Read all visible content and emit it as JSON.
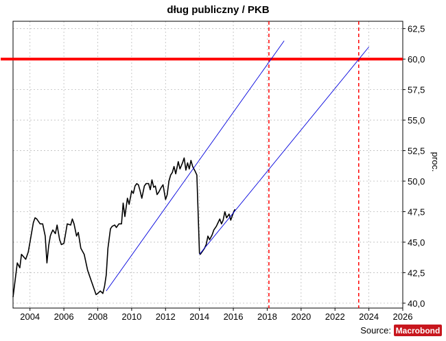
{
  "chart_data": {
    "type": "line",
    "title": "dług publiczny / PKB",
    "ylabel": "proc.",
    "xlim": [
      2003.0,
      2026.0
    ],
    "ylim": [
      39.6,
      63.1
    ],
    "x_ticks": [
      2004,
      2006,
      2008,
      2010,
      2012,
      2014,
      2016,
      2018,
      2020,
      2022,
      2024,
      2026
    ],
    "y_ticks": [
      "40,0",
      "42,5",
      "45,0",
      "47,5",
      "50,0",
      "52,5",
      "55,0",
      "57,5",
      "60,0",
      "62,5"
    ],
    "y_tick_values": [
      40.0,
      42.5,
      45.0,
      47.5,
      50.0,
      52.5,
      55.0,
      57.5,
      60.0,
      62.5
    ],
    "grid": true,
    "series": [
      {
        "color": "#000000",
        "style": "solid",
        "x": [
          2003.0,
          2003.25,
          2003.4,
          2003.5,
          2003.75,
          2003.9,
          2004.0,
          2004.2,
          2004.3,
          2004.4,
          2004.6,
          2004.75,
          2004.9,
          2005.0,
          2005.1,
          2005.2,
          2005.25,
          2005.35,
          2005.5,
          2005.6,
          2005.75,
          2005.85,
          2006.0,
          2006.1,
          2006.2,
          2006.4,
          2006.5,
          2006.6,
          2006.75,
          2006.85,
          2007.0,
          2007.2,
          2007.4,
          2007.6,
          2007.75,
          2007.9,
          2008.0,
          2008.15,
          2008.3,
          2008.4,
          2008.5,
          2008.6,
          2008.75,
          2008.85,
          2009.0,
          2009.1,
          2009.25,
          2009.4,
          2009.5,
          2009.6,
          2009.75,
          2009.85,
          2010.0,
          2010.1,
          2010.2,
          2010.3,
          2010.4,
          2010.5,
          2010.6,
          2010.75,
          2010.85,
          2011.0,
          2011.1,
          2011.2,
          2011.3,
          2011.4,
          2011.5,
          2011.6,
          2011.75,
          2011.85,
          2012.0,
          2012.1,
          2012.2,
          2012.3,
          2012.4,
          2012.5,
          2012.6,
          2012.75,
          2012.85,
          2013.0,
          2013.1,
          2013.2,
          2013.3,
          2013.4,
          2013.5,
          2013.6,
          2013.75,
          2013.85,
          2014.0,
          2014.05,
          2014.1,
          2014.2,
          2014.3,
          2014.4,
          2014.5,
          2014.6,
          2014.75,
          2014.85,
          2015.0,
          2015.1,
          2015.2,
          2015.3,
          2015.4,
          2015.5,
          2015.6,
          2015.75,
          2015.85,
          2016.0,
          2016.1
        ],
        "values": [
          40.5,
          43.3,
          42.9,
          44.0,
          43.6,
          44.2,
          45.0,
          46.6,
          47.0,
          46.9,
          46.5,
          46.5,
          45.5,
          43.3,
          44.7,
          45.5,
          45.7,
          46.0,
          45.7,
          46.4,
          45.2,
          44.8,
          44.9,
          45.7,
          46.5,
          46.4,
          46.9,
          46.5,
          45.5,
          45.8,
          44.5,
          44.0,
          42.7,
          41.9,
          41.3,
          40.7,
          40.8,
          41.0,
          40.8,
          41.4,
          42.3,
          44.5,
          46.1,
          46.3,
          46.4,
          46.2,
          46.5,
          46.5,
          48.2,
          47.1,
          48.6,
          48.1,
          49.2,
          49.0,
          49.6,
          49.8,
          49.7,
          49.2,
          48.6,
          49.6,
          49.8,
          49.8,
          49.3,
          50.1,
          49.5,
          49.6,
          48.9,
          49.1,
          49.5,
          49.7,
          48.5,
          48.9,
          50.0,
          50.5,
          50.7,
          51.2,
          50.6,
          51.6,
          51.0,
          51.5,
          51.9,
          50.9,
          51.5,
          51.0,
          51.7,
          51.2,
          50.8,
          50.5,
          44.1,
          44.0,
          44.1,
          44.3,
          44.5,
          44.8,
          45.5,
          45.2,
          45.6,
          46.0,
          46.3,
          46.6,
          46.9,
          46.5,
          46.8,
          47.5,
          47.0,
          47.3,
          46.8,
          47.4,
          47.7
        ]
      },
      {
        "color": "#0000dd",
        "style": "thin",
        "x": [
          2008.5,
          2019.0
        ],
        "values": [
          41.0,
          61.5
        ]
      },
      {
        "color": "#0000dd",
        "style": "thin",
        "x": [
          2014.0,
          2024.0
        ],
        "values": [
          44.0,
          61.0
        ]
      }
    ],
    "annotations": {
      "hline": {
        "y": 60.0,
        "color": "#ff0000"
      },
      "vlines": [
        {
          "x": 2018.1,
          "color": "#ff0000",
          "style": "dashed"
        },
        {
          "x": 2023.4,
          "color": "#ff0000",
          "style": "dashed"
        }
      ]
    }
  },
  "footer": {
    "source_label": "Source:",
    "logo": "Macrobond"
  },
  "colors": {
    "threshold": "#ff0000",
    "trend": "#0000dd",
    "series": "#000000",
    "grid": "#bbbbbb",
    "logo_bg": "#c8161d"
  }
}
